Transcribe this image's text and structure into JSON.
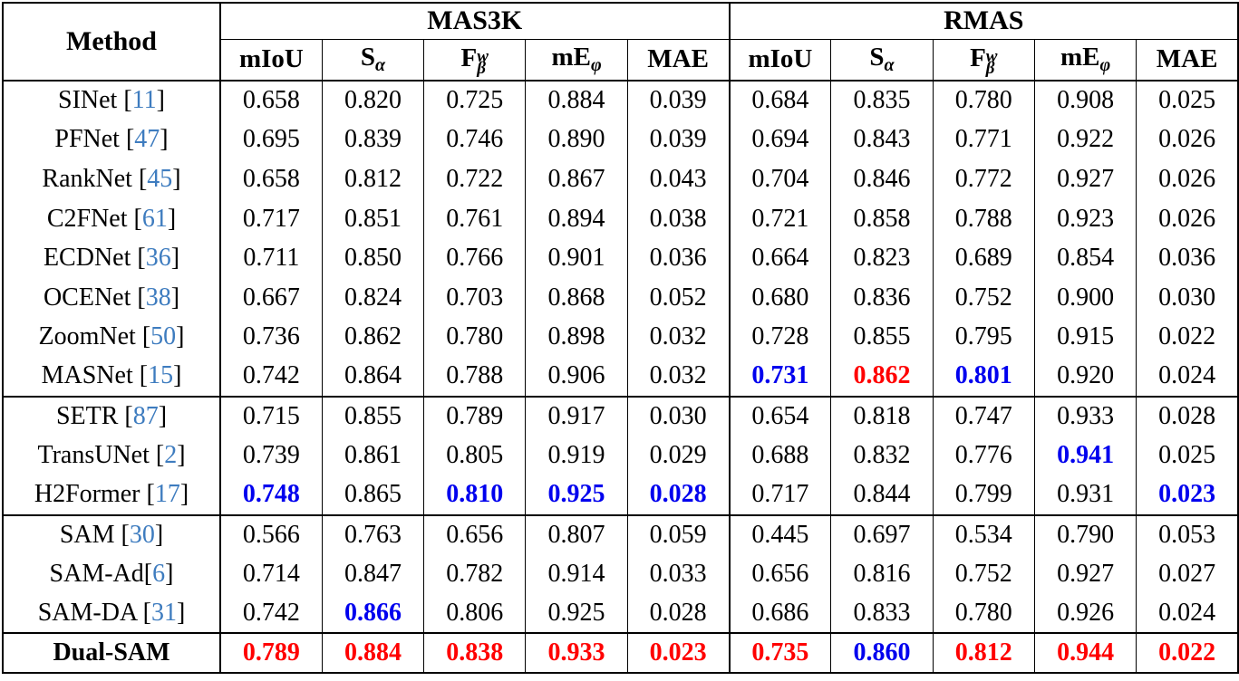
{
  "colors": {
    "best_value": "#ff0000",
    "second_best_value": "#0000ee",
    "citation_link": "#3e7cbf",
    "text": "#000000"
  },
  "table": {
    "method_header": "Method",
    "groups": [
      {
        "label": "MAS3K"
      },
      {
        "label": "RMAS"
      }
    ],
    "metrics": [
      {
        "id": "miou",
        "base": "mIoU"
      },
      {
        "id": "s-alpha",
        "base": "S",
        "sub": "α"
      },
      {
        "id": "f-beta-w",
        "base": "F",
        "sup": "w",
        "sub": "β"
      },
      {
        "id": "me-phi",
        "base": "mE",
        "sub": "φ"
      },
      {
        "id": "mae",
        "base": "MAE"
      }
    ],
    "rows": [
      {
        "method": "SINet",
        "cite": "11",
        "sep": " ",
        "bold": false,
        "group_end": false,
        "values": [
          "0.658",
          "0.820",
          "0.725",
          "0.884",
          "0.039",
          "0.684",
          "0.835",
          "0.780",
          "0.908",
          "0.025"
        ],
        "styles": [
          "n",
          "n",
          "n",
          "n",
          "n",
          "n",
          "n",
          "n",
          "n",
          "n"
        ]
      },
      {
        "method": "PFNet",
        "cite": "47",
        "sep": " ",
        "bold": false,
        "group_end": false,
        "values": [
          "0.695",
          "0.839",
          "0.746",
          "0.890",
          "0.039",
          "0.694",
          "0.843",
          "0.771",
          "0.922",
          "0.026"
        ],
        "styles": [
          "n",
          "n",
          "n",
          "n",
          "n",
          "n",
          "n",
          "n",
          "n",
          "n"
        ]
      },
      {
        "method": "RankNet",
        "cite": "45",
        "sep": " ",
        "bold": false,
        "group_end": false,
        "values": [
          "0.658",
          "0.812",
          "0.722",
          "0.867",
          "0.043",
          "0.704",
          "0.846",
          "0.772",
          "0.927",
          "0.026"
        ],
        "styles": [
          "n",
          "n",
          "n",
          "n",
          "n",
          "n",
          "n",
          "n",
          "n",
          "n"
        ]
      },
      {
        "method": "C2FNet",
        "cite": "61",
        "sep": " ",
        "bold": false,
        "group_end": false,
        "values": [
          "0.717",
          "0.851",
          "0.761",
          "0.894",
          "0.038",
          "0.721",
          "0.858",
          "0.788",
          "0.923",
          "0.026"
        ],
        "styles": [
          "n",
          "n",
          "n",
          "n",
          "n",
          "n",
          "n",
          "n",
          "n",
          "n"
        ]
      },
      {
        "method": "ECDNet",
        "cite": "36",
        "sep": " ",
        "bold": false,
        "group_end": false,
        "values": [
          "0.711",
          "0.850",
          "0.766",
          "0.901",
          "0.036",
          "0.664",
          "0.823",
          "0.689",
          "0.854",
          "0.036"
        ],
        "styles": [
          "n",
          "n",
          "n",
          "n",
          "n",
          "n",
          "n",
          "n",
          "n",
          "n"
        ]
      },
      {
        "method": "OCENet",
        "cite": "38",
        "sep": " ",
        "bold": false,
        "group_end": false,
        "values": [
          "0.667",
          "0.824",
          "0.703",
          "0.868",
          "0.052",
          "0.680",
          "0.836",
          "0.752",
          "0.900",
          "0.030"
        ],
        "styles": [
          "n",
          "n",
          "n",
          "n",
          "n",
          "n",
          "n",
          "n",
          "n",
          "n"
        ]
      },
      {
        "method": "ZoomNet",
        "cite": "50",
        "sep": " ",
        "bold": false,
        "group_end": false,
        "values": [
          "0.736",
          "0.862",
          "0.780",
          "0.898",
          "0.032",
          "0.728",
          "0.855",
          "0.795",
          "0.915",
          "0.022"
        ],
        "styles": [
          "n",
          "n",
          "n",
          "n",
          "n",
          "n",
          "n",
          "n",
          "n",
          "n"
        ]
      },
      {
        "method": "MASNet",
        "cite": "15",
        "sep": " ",
        "bold": false,
        "group_end": true,
        "values": [
          "0.742",
          "0.864",
          "0.788",
          "0.906",
          "0.032",
          "0.731",
          "0.862",
          "0.801",
          "0.920",
          "0.024"
        ],
        "styles": [
          "n",
          "n",
          "n",
          "n",
          "n",
          "b",
          "r",
          "b",
          "n",
          "n"
        ]
      },
      {
        "method": "SETR",
        "cite": "87",
        "sep": " ",
        "bold": false,
        "group_end": false,
        "values": [
          "0.715",
          "0.855",
          "0.789",
          "0.917",
          "0.030",
          "0.654",
          "0.818",
          "0.747",
          "0.933",
          "0.028"
        ],
        "styles": [
          "n",
          "n",
          "n",
          "n",
          "n",
          "n",
          "n",
          "n",
          "n",
          "n"
        ]
      },
      {
        "method": "TransUNet",
        "cite": "2",
        "sep": " ",
        "bold": false,
        "group_end": false,
        "values": [
          "0.739",
          "0.861",
          "0.805",
          "0.919",
          "0.029",
          "0.688",
          "0.832",
          "0.776",
          "0.941",
          "0.025"
        ],
        "styles": [
          "n",
          "n",
          "n",
          "n",
          "n",
          "n",
          "n",
          "n",
          "b",
          "n"
        ]
      },
      {
        "method": "H2Former",
        "cite": "17",
        "sep": " ",
        "bold": false,
        "group_end": true,
        "values": [
          "0.748",
          "0.865",
          "0.810",
          "0.925",
          "0.028",
          "0.717",
          "0.844",
          "0.799",
          "0.931",
          "0.023"
        ],
        "styles": [
          "b",
          "n",
          "b",
          "b",
          "b",
          "n",
          "n",
          "n",
          "n",
          "b"
        ]
      },
      {
        "method": "SAM",
        "cite": "30",
        "sep": " ",
        "bold": false,
        "group_end": false,
        "values": [
          "0.566",
          "0.763",
          "0.656",
          "0.807",
          "0.059",
          "0.445",
          "0.697",
          "0.534",
          "0.790",
          "0.053"
        ],
        "styles": [
          "n",
          "n",
          "n",
          "n",
          "n",
          "n",
          "n",
          "n",
          "n",
          "n"
        ]
      },
      {
        "method": "SAM-Ad",
        "cite": "6",
        "sep": "",
        "bold": false,
        "group_end": false,
        "values": [
          "0.714",
          "0.847",
          "0.782",
          "0.914",
          "0.033",
          "0.656",
          "0.816",
          "0.752",
          "0.927",
          "0.027"
        ],
        "styles": [
          "n",
          "n",
          "n",
          "n",
          "n",
          "n",
          "n",
          "n",
          "n",
          "n"
        ]
      },
      {
        "method": "SAM-DA",
        "cite": "31",
        "sep": " ",
        "bold": false,
        "group_end": true,
        "values": [
          "0.742",
          "0.866",
          "0.806",
          "0.925",
          "0.028",
          "0.686",
          "0.833",
          "0.780",
          "0.926",
          "0.024"
        ],
        "styles": [
          "n",
          "b",
          "n",
          "n",
          "n",
          "n",
          "n",
          "n",
          "n",
          "n"
        ]
      },
      {
        "method": "Dual-SAM",
        "cite": null,
        "sep": "",
        "bold": true,
        "group_end": false,
        "values": [
          "0.789",
          "0.884",
          "0.838",
          "0.933",
          "0.023",
          "0.735",
          "0.860",
          "0.812",
          "0.944",
          "0.022"
        ],
        "styles": [
          "r",
          "r",
          "r",
          "r",
          "r",
          "r",
          "b",
          "r",
          "r",
          "r"
        ]
      }
    ]
  }
}
